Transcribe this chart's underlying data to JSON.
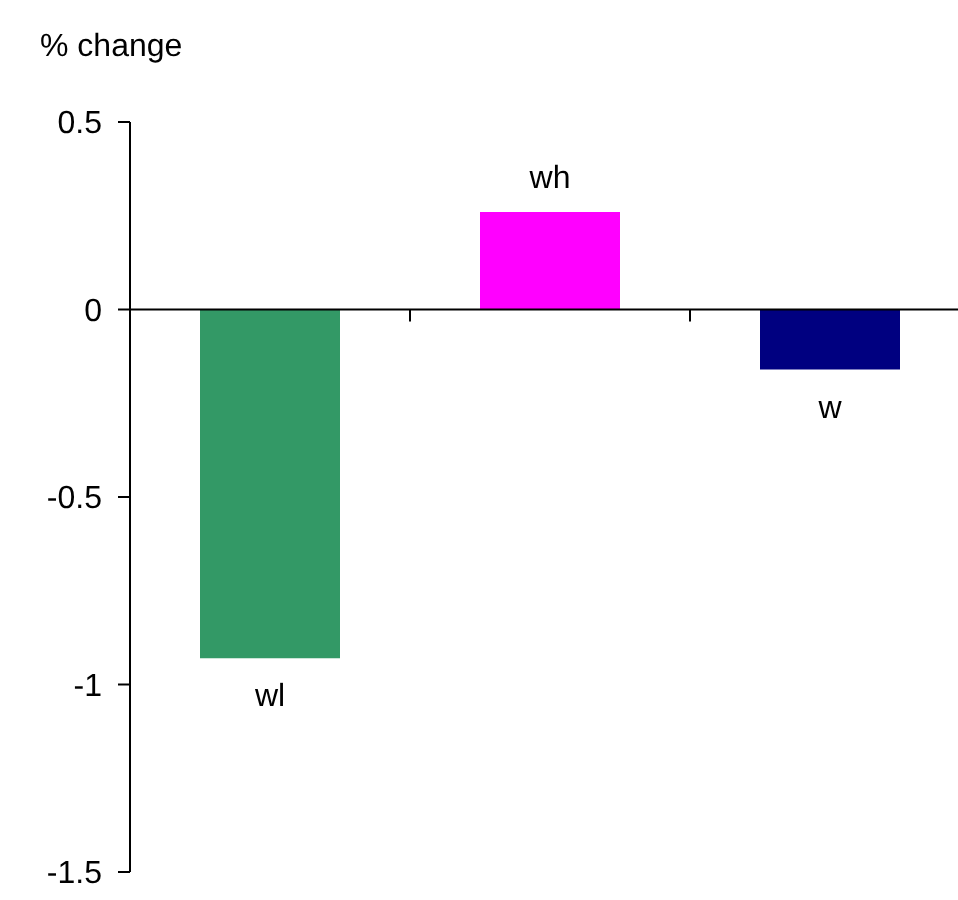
{
  "chart_data": {
    "type": "bar",
    "ylabel": "% change",
    "categories": [
      "wl",
      "wh",
      "w"
    ],
    "values": [
      -0.93,
      0.26,
      -0.16
    ],
    "colors": [
      "#339966",
      "#ff00ff",
      "#000080"
    ],
    "ylim": [
      -1.5,
      0.5
    ],
    "yticks": [
      -1.5,
      -1,
      -0.5,
      0,
      0.5
    ]
  }
}
